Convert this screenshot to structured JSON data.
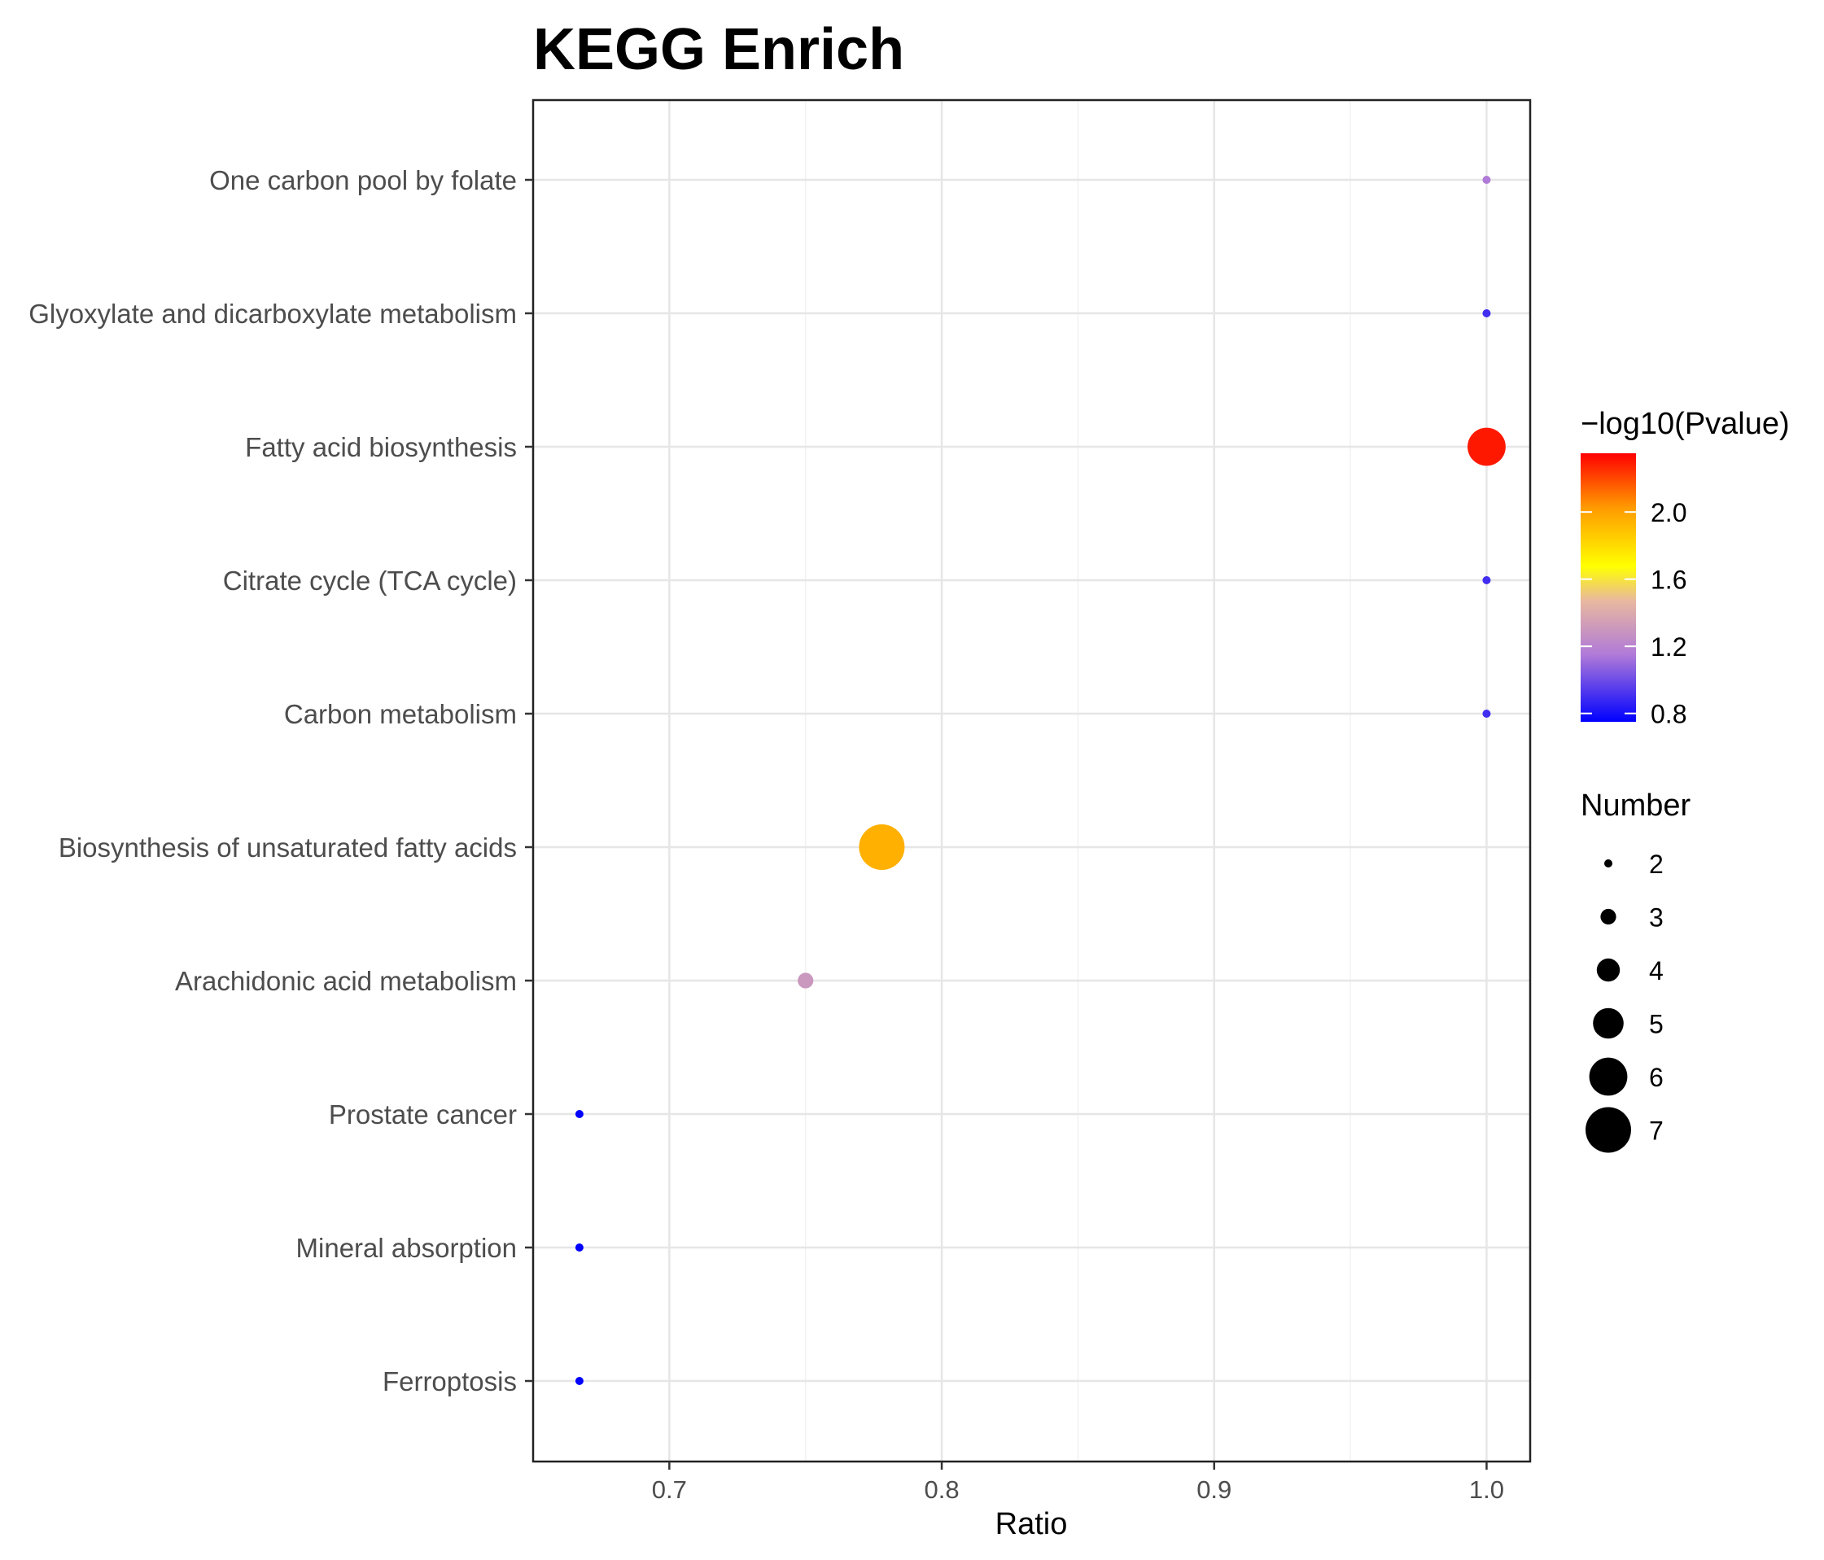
{
  "chart_data": {
    "type": "scatter",
    "title": "KEGG Enrich",
    "xlabel": "Ratio",
    "ylabel": "",
    "xlim": [
      0.65,
      1.016
    ],
    "x_ticks": [
      "0.7",
      "0.8",
      "0.9",
      "1.0"
    ],
    "x_tick_values": [
      0.7,
      0.8,
      0.9,
      1.0
    ],
    "grid": true,
    "categories": [
      "One carbon pool by folate",
      "Glyoxylate and dicarboxylate metabolism",
      "Fatty acid biosynthesis",
      "Citrate cycle (TCA cycle)",
      "Carbon metabolism",
      "Biosynthesis of unsaturated fatty acids",
      "Arachidonic acid metabolism",
      "Prostate cancer",
      "Mineral absorption",
      "Ferroptosis"
    ],
    "points": [
      {
        "term": "One carbon pool by folate",
        "ratio": 1.0,
        "neglog10p": 1.15,
        "number": 2
      },
      {
        "term": "Glyoxylate and dicarboxylate metabolism",
        "ratio": 1.0,
        "neglog10p": 0.9,
        "number": 2
      },
      {
        "term": "Fatty acid biosynthesis",
        "ratio": 1.0,
        "neglog10p": 2.3,
        "number": 6
      },
      {
        "term": "Citrate cycle (TCA cycle)",
        "ratio": 1.0,
        "neglog10p": 0.9,
        "number": 2
      },
      {
        "term": "Carbon metabolism",
        "ratio": 1.0,
        "neglog10p": 0.9,
        "number": 2
      },
      {
        "term": "Biosynthesis of unsaturated fatty acids",
        "ratio": 0.778,
        "neglog10p": 1.95,
        "number": 7
      },
      {
        "term": "Arachidonic acid metabolism",
        "ratio": 0.75,
        "neglog10p": 1.3,
        "number": 3
      },
      {
        "term": "Prostate cancer",
        "ratio": 0.667,
        "neglog10p": 0.75,
        "number": 2
      },
      {
        "term": "Mineral absorption",
        "ratio": 0.667,
        "neglog10p": 0.75,
        "number": 2
      },
      {
        "term": "Ferroptosis",
        "ratio": 0.667,
        "neglog10p": 0.75,
        "number": 2
      }
    ],
    "color_legend": {
      "title": "−log10(Pvalue)",
      "range": [
        0.75,
        2.35
      ],
      "ticks": [
        0.8,
        1.2,
        1.6,
        2.0
      ],
      "tick_labels": [
        "0.8",
        "1.2",
        "1.6",
        "2.0"
      ],
      "colors": [
        "#0000ff",
        "#ffff00",
        "#ff0000"
      ]
    },
    "size_legend": {
      "title": "Number",
      "values": [
        2,
        3,
        4,
        5,
        6,
        7
      ],
      "labels": [
        "2",
        "3",
        "4",
        "5",
        "6",
        "7"
      ]
    },
    "point_color": "#000000"
  }
}
